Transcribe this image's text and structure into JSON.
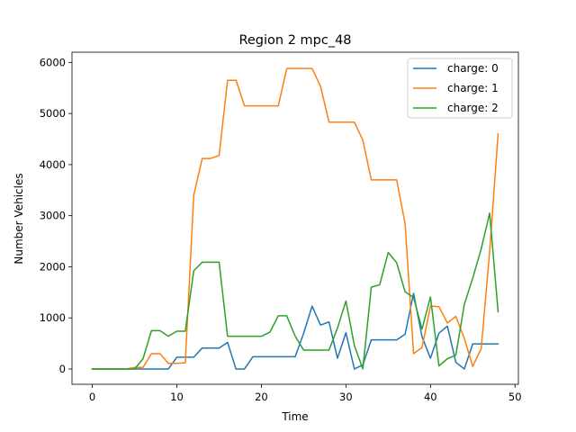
{
  "chart_data": {
    "type": "line",
    "title": "Region 2 mpc_48",
    "xlabel": "Time",
    "ylabel": "Number Vehicles",
    "xlim": [
      -2.4,
      50.4
    ],
    "ylim": [
      -300,
      6200
    ],
    "xticks": [
      0,
      10,
      20,
      30,
      40,
      50
    ],
    "yticks": [
      0,
      1000,
      2000,
      3000,
      4000,
      5000,
      6000
    ],
    "grid": false,
    "legend_position": "top-right",
    "x": [
      0,
      1,
      2,
      3,
      4,
      5,
      6,
      7,
      8,
      9,
      10,
      11,
      12,
      13,
      14,
      15,
      16,
      17,
      18,
      19,
      20,
      21,
      22,
      23,
      24,
      25,
      26,
      27,
      28,
      29,
      30,
      31,
      32,
      33,
      34,
      35,
      36,
      37,
      38,
      39,
      40,
      41,
      42,
      43,
      44,
      45,
      46,
      47,
      48
    ],
    "series": [
      {
        "name": "charge: 0",
        "color": "#1f77b4",
        "values": [
          0,
          0,
          0,
          0,
          0,
          0,
          0,
          0,
          0,
          0,
          230,
          230,
          230,
          410,
          410,
          410,
          520,
          0,
          0,
          240,
          240,
          240,
          240,
          240,
          240,
          700,
          1230,
          860,
          920,
          210,
          710,
          0,
          80,
          570,
          570,
          570,
          570,
          680,
          1480,
          630,
          210,
          700,
          840,
          130,
          0,
          490,
          490,
          490,
          490
        ]
      },
      {
        "name": "charge: 1",
        "color": "#ff7f0e",
        "values": [
          0,
          0,
          0,
          0,
          0,
          30,
          30,
          300,
          300,
          110,
          110,
          120,
          3400,
          4120,
          4120,
          4180,
          5650,
          5650,
          5150,
          5150,
          5150,
          5150,
          5150,
          5880,
          5880,
          5880,
          5880,
          5530,
          4830,
          4830,
          4830,
          4830,
          4480,
          3700,
          3700,
          3700,
          3700,
          2840,
          300,
          420,
          1230,
          1220,
          900,
          1030,
          600,
          50,
          400,
          2300,
          4600
        ]
      },
      {
        "name": "charge: 2",
        "color": "#2ca02c",
        "values": [
          0,
          0,
          0,
          0,
          0,
          0,
          200,
          750,
          750,
          640,
          740,
          740,
          1920,
          2090,
          2090,
          2090,
          640,
          640,
          640,
          640,
          640,
          720,
          1040,
          1040,
          640,
          370,
          370,
          370,
          370,
          800,
          1330,
          460,
          0,
          1600,
          1650,
          2280,
          2080,
          1510,
          1400,
          780,
          1410,
          60,
          200,
          270,
          1260,
          1780,
          2350,
          3050,
          1120
        ]
      }
    ]
  }
}
